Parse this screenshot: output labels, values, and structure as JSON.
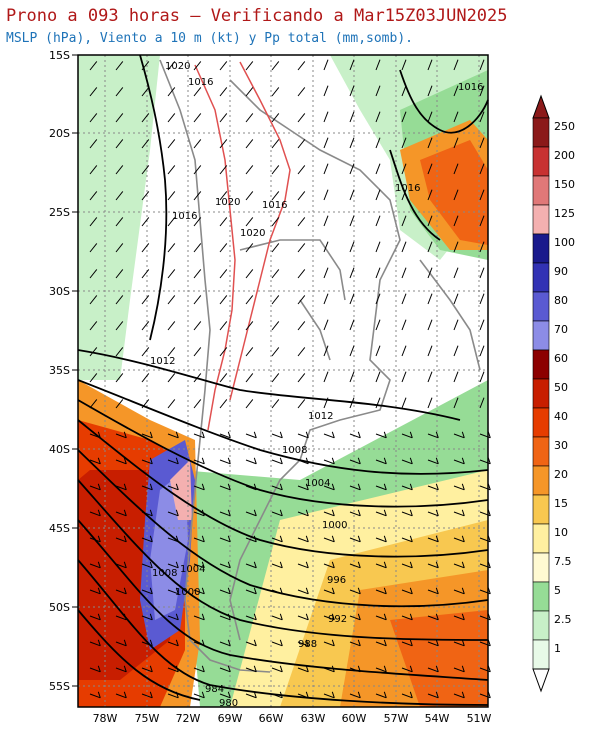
{
  "header": {
    "title": "Prono a 093 horas — Verificando a Mar15Z03JUN2025",
    "subtitle": "MSLP (hPa), Viento a 10 m (kt) y Pp total (mm,somb)."
  },
  "map": {
    "lat_labels": [
      "15S",
      "20S",
      "25S",
      "30S",
      "35S",
      "40S",
      "45S",
      "50S",
      "55S"
    ],
    "lon_labels": [
      "78W",
      "75W",
      "72W",
      "69W",
      "66W",
      "63W",
      "60W",
      "57W",
      "54W",
      "51W"
    ],
    "isobar_labels": [
      "1020",
      "1016",
      "1016",
      "1020",
      "1016",
      "1020",
      "1016",
      "1016",
      "1012",
      "1008",
      "1004",
      "1012",
      "1000",
      "996",
      "992",
      "988",
      "984",
      "980",
      "1008",
      "1004",
      "1000"
    ],
    "colors": {
      "ocean": "#ffffff",
      "land_rain_light": "#a8e6a0",
      "rain_heavy": "#e04010",
      "border": "#8a8a8a",
      "isobar": "#000000",
      "topo": "#e05050"
    }
  },
  "colorbar": {
    "labels": [
      "250",
      "200",
      "150",
      "125",
      "100",
      "90",
      "80",
      "70",
      "60",
      "50",
      "40",
      "30",
      "20",
      "15",
      "10",
      "7.5",
      "5",
      "2.5",
      "1"
    ],
    "colors": [
      "#8b1a1a",
      "#c83232",
      "#e07878",
      "#f4b0b0",
      "#1a1a8c",
      "#3232b4",
      "#5a5ad2",
      "#8c8ce6",
      "#8c0000",
      "#c81e00",
      "#e63c00",
      "#f06414",
      "#f59628",
      "#f8c850",
      "#fff0a0",
      "#fffad2",
      "#96dc96",
      "#c8f0c8",
      "#e8fae8"
    ]
  }
}
